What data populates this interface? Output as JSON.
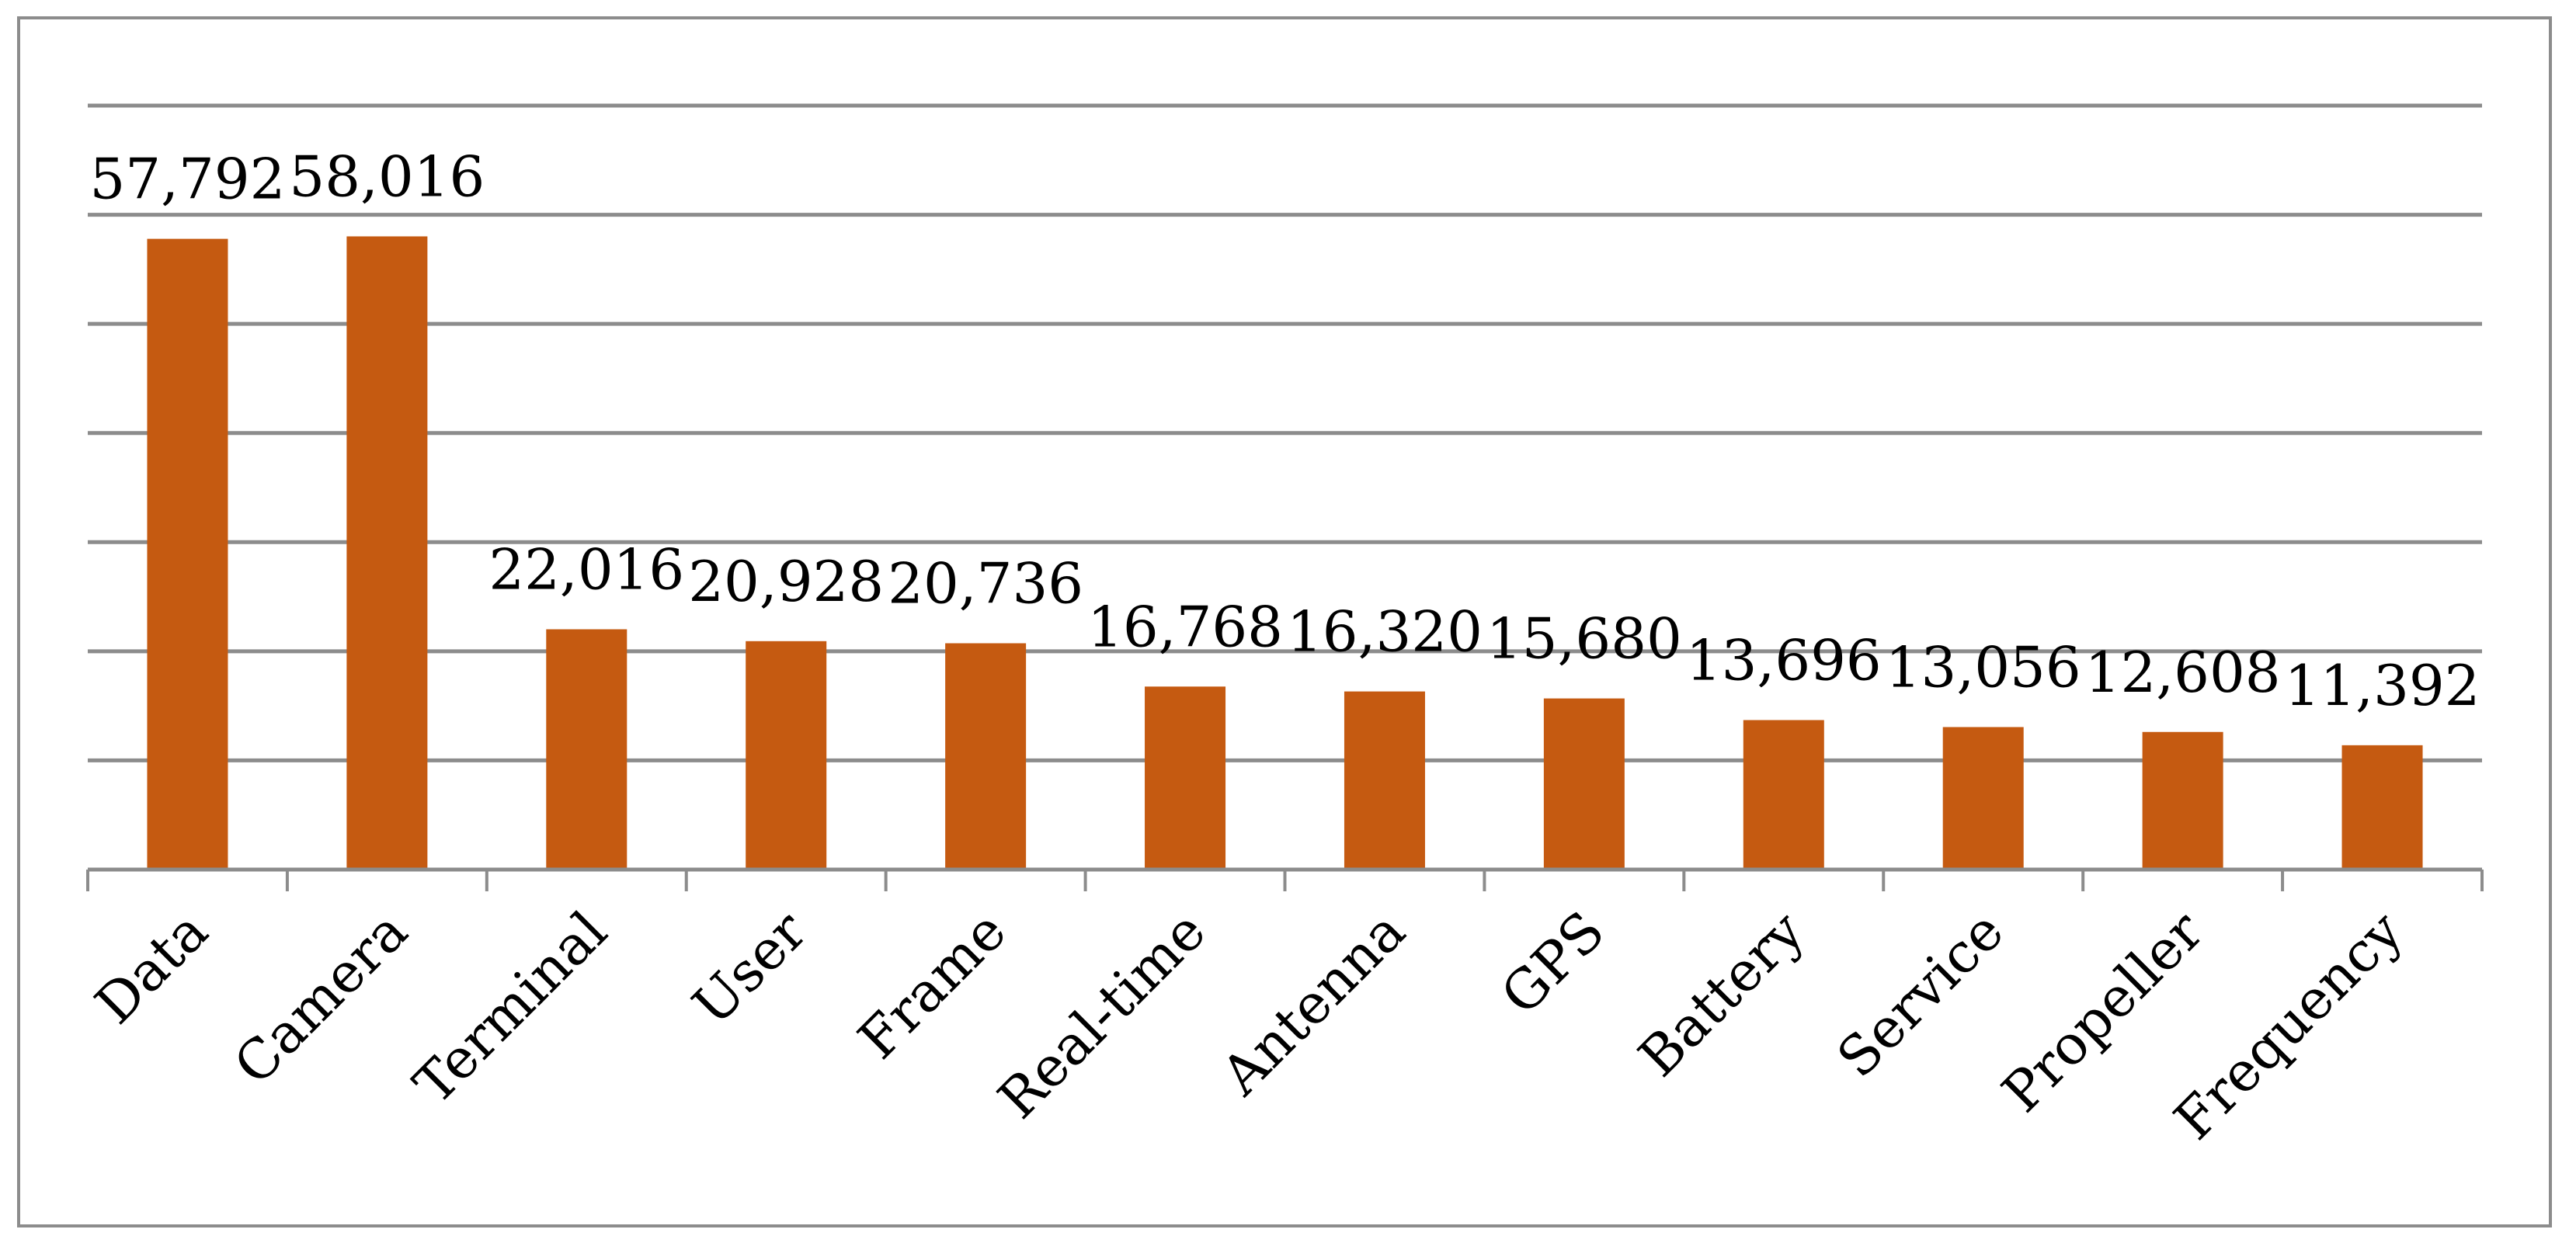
{
  "chart_data": {
    "type": "bar",
    "categories": [
      "Data",
      "Camera",
      "Terminal",
      "User",
      "Frame",
      "Real-time",
      "Antenna",
      "GPS",
      "Battery",
      "Service",
      "Propeller",
      "Frequency"
    ],
    "values": [
      57792,
      58016,
      22016,
      20928,
      20736,
      16768,
      16320,
      15680,
      13696,
      13056,
      12608,
      11392
    ],
    "value_labels": [
      "57,792",
      "58,016",
      "22,016",
      "20,928",
      "20,736",
      "16,768",
      "16,320",
      "15,680",
      "13,696",
      "13,056",
      "12,608",
      "11,392"
    ],
    "ylim": [
      0,
      70000
    ],
    "y_gridline_step": 10000,
    "y_tick_labels_shown": false,
    "grid": true,
    "legend": "none",
    "bar_color": "#C55A11",
    "grid_color": "#8C8C8C",
    "category_label_rotation_deg": -45
  }
}
